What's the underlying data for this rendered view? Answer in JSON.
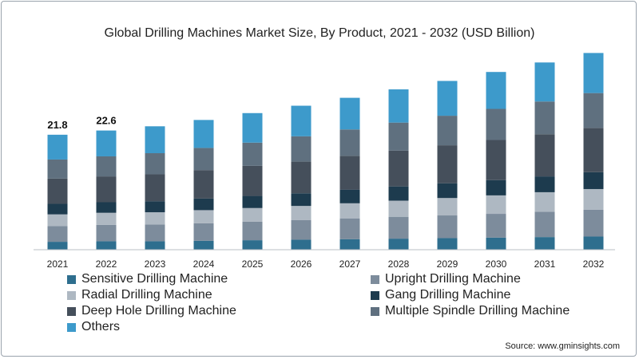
{
  "chart_data": {
    "type": "bar",
    "stacked": true,
    "title": "Global Drilling Machines Market Size, By Product, 2021 - 2032 (USD Billion)",
    "xlabel": "",
    "ylabel": "",
    "categories": [
      "2021",
      "2022",
      "2023",
      "2024",
      "2025",
      "2026",
      "2027",
      "2028",
      "2029",
      "2030",
      "2031",
      "2032"
    ],
    "ylim": [
      0,
      36
    ],
    "grid": false,
    "legend_position": "bottom",
    "series": [
      {
        "name": "Sensitive Drilling Machine",
        "color": "#2e6e8e",
        "values": [
          1.5,
          1.6,
          1.6,
          1.7,
          1.8,
          1.9,
          2.0,
          2.1,
          2.2,
          2.3,
          2.4,
          2.5
        ]
      },
      {
        "name": "Upright Drilling Machine",
        "color": "#7d8c9c",
        "values": [
          3.0,
          3.1,
          3.2,
          3.3,
          3.5,
          3.7,
          3.9,
          4.1,
          4.3,
          4.5,
          4.8,
          5.1
        ]
      },
      {
        "name": "Radial Drilling Machine",
        "color": "#aeb8c2",
        "values": [
          2.2,
          2.3,
          2.3,
          2.5,
          2.6,
          2.7,
          2.9,
          3.1,
          3.3,
          3.5,
          3.7,
          3.9
        ]
      },
      {
        "name": "Gang Drilling Machine",
        "color": "#1d3b4e",
        "values": [
          2.0,
          2.0,
          2.1,
          2.2,
          2.3,
          2.4,
          2.6,
          2.7,
          2.8,
          2.9,
          3.0,
          3.2
        ]
      },
      {
        "name": "Deep Hole Drilling Machine",
        "color": "#454f5b",
        "values": [
          4.8,
          4.9,
          5.1,
          5.4,
          5.7,
          6.0,
          6.4,
          6.8,
          7.2,
          7.6,
          8.0,
          8.4
        ]
      },
      {
        "name": "Multiple Spindle Drilling Machine",
        "color": "#5f707f",
        "values": [
          3.6,
          3.8,
          4.0,
          4.2,
          4.4,
          4.8,
          5.0,
          5.3,
          5.6,
          5.9,
          6.2,
          6.6
        ]
      },
      {
        "name": "Others",
        "color": "#3d9acb",
        "values": [
          4.7,
          4.9,
          5.1,
          5.3,
          5.6,
          5.8,
          6.0,
          6.3,
          6.6,
          7.0,
          7.4,
          7.6
        ]
      }
    ],
    "data_labels": [
      {
        "category": "2021",
        "text": "21.8"
      },
      {
        "category": "2022",
        "text": "22.6"
      }
    ]
  },
  "source": "Source: www.gminsights.com"
}
